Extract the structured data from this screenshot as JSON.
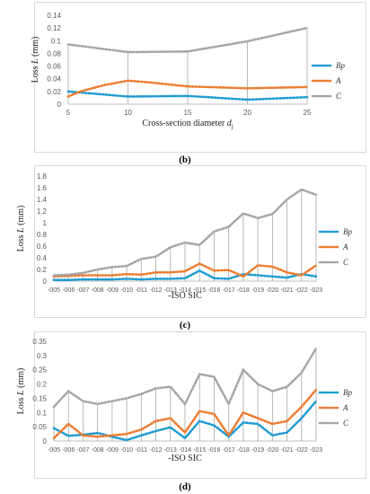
{
  "chart_data": [
    {
      "type": "line",
      "caption": "(b)",
      "ylabel": "Loss L (mm)",
      "xlabel": "Cross-section diameter d",
      "xlabel_sub": "j",
      "ylim": [
        0,
        0.14
      ],
      "yticks": [
        "0",
        "0.02",
        "0.04",
        "0.06",
        "0.08",
        "0.1",
        "0.12",
        "0.14"
      ],
      "categories": [
        "5",
        "10",
        "15",
        "20",
        "25"
      ],
      "x_numeric": [
        5,
        10,
        15,
        20,
        25
      ],
      "grid": false,
      "drop_lines": true,
      "legend": "right",
      "series": [
        {
          "name": "Bp",
          "color": "#1f9bd1",
          "x": [
            5,
            10,
            15,
            20,
            25
          ],
          "values": [
            0.02,
            0.012,
            0.013,
            0.007,
            0.011
          ]
        },
        {
          "name": "A",
          "color": "#ed7d31",
          "x": [
            5,
            6,
            8,
            10,
            12,
            15,
            20,
            25
          ],
          "values": [
            0.012,
            0.02,
            0.03,
            0.037,
            0.034,
            0.028,
            0.025,
            0.027
          ]
        },
        {
          "name": "C",
          "color": "#a6a6a6",
          "x": [
            5,
            10,
            15,
            20,
            25
          ],
          "values": [
            0.094,
            0.082,
            0.083,
            0.099,
            0.12
          ]
        }
      ]
    },
    {
      "type": "line",
      "caption": "(c)",
      "ylabel": "Loss L (mm)",
      "xlabel": "-ISO SIC",
      "ylim": [
        0,
        1.8
      ],
      "yticks": [
        "0",
        "0.2",
        "0.4",
        "0.6",
        "0.8",
        "1",
        "1.2",
        "1.4",
        "1.6",
        "1.8"
      ],
      "categories": [
        "-005",
        "-006",
        "-007",
        "-008",
        "-009",
        "-010",
        "-011",
        "-012",
        "-013",
        "-014",
        "-015",
        "-016",
        "-017",
        "-018",
        "-019",
        "-020",
        "-021",
        "-022",
        "-023"
      ],
      "grid": false,
      "drop_lines": true,
      "legend": "right",
      "series": [
        {
          "name": "Bp",
          "color": "#1f9bd1",
          "values": [
            0.02,
            0.02,
            0.03,
            0.03,
            0.03,
            0.04,
            0.03,
            0.04,
            0.04,
            0.05,
            0.18,
            0.05,
            0.04,
            0.12,
            0.1,
            0.08,
            0.06,
            0.12,
            0.08
          ]
        },
        {
          "name": "A",
          "color": "#ed7d31",
          "values": [
            0.08,
            0.09,
            0.1,
            0.1,
            0.1,
            0.12,
            0.11,
            0.15,
            0.15,
            0.17,
            0.3,
            0.18,
            0.19,
            0.08,
            0.27,
            0.25,
            0.15,
            0.1,
            0.27
          ]
        },
        {
          "name": "C",
          "color": "#a6a6a6",
          "values": [
            0.1,
            0.11,
            0.14,
            0.2,
            0.24,
            0.26,
            0.38,
            0.42,
            0.58,
            0.66,
            0.62,
            0.85,
            0.93,
            1.16,
            1.08,
            1.15,
            1.4,
            1.57,
            1.48
          ]
        }
      ]
    },
    {
      "type": "line",
      "caption": "(d)",
      "ylabel": "Loss L (mm)",
      "xlabel": "-ISO SIC",
      "ylim": [
        0,
        0.35
      ],
      "yticks": [
        "0",
        "0.05",
        "0.1",
        "0.15",
        "0.2",
        "0.25",
        "0.3",
        "0.35"
      ],
      "categories": [
        "-005",
        "-006",
        "-007",
        "-008",
        "-009",
        "-010",
        "-011",
        "-012",
        "-013",
        "-014",
        "-015",
        "-016",
        "-017",
        "-018",
        "-019",
        "-020",
        "-021",
        "-022",
        "-023"
      ],
      "grid": false,
      "drop_lines": true,
      "legend": "right",
      "series": [
        {
          "name": "Bp",
          "color": "#1f9bd1",
          "values": [
            0.045,
            0.018,
            0.022,
            0.028,
            0.015,
            0.003,
            0.02,
            0.035,
            0.048,
            0.01,
            0.07,
            0.055,
            0.015,
            0.065,
            0.06,
            0.02,
            0.03,
            0.08,
            0.14
          ]
        },
        {
          "name": "A",
          "color": "#ed7d31",
          "values": [
            0.01,
            0.06,
            0.02,
            0.015,
            0.02,
            0.025,
            0.04,
            0.07,
            0.08,
            0.03,
            0.105,
            0.095,
            0.02,
            0.1,
            0.08,
            0.06,
            0.07,
            0.12,
            0.18
          ]
        },
        {
          "name": "C",
          "color": "#a6a6a6",
          "values": [
            0.12,
            0.175,
            0.14,
            0.13,
            0.14,
            0.15,
            0.165,
            0.185,
            0.19,
            0.13,
            0.235,
            0.225,
            0.13,
            0.25,
            0.2,
            0.175,
            0.19,
            0.24,
            0.325
          ]
        }
      ]
    }
  ]
}
